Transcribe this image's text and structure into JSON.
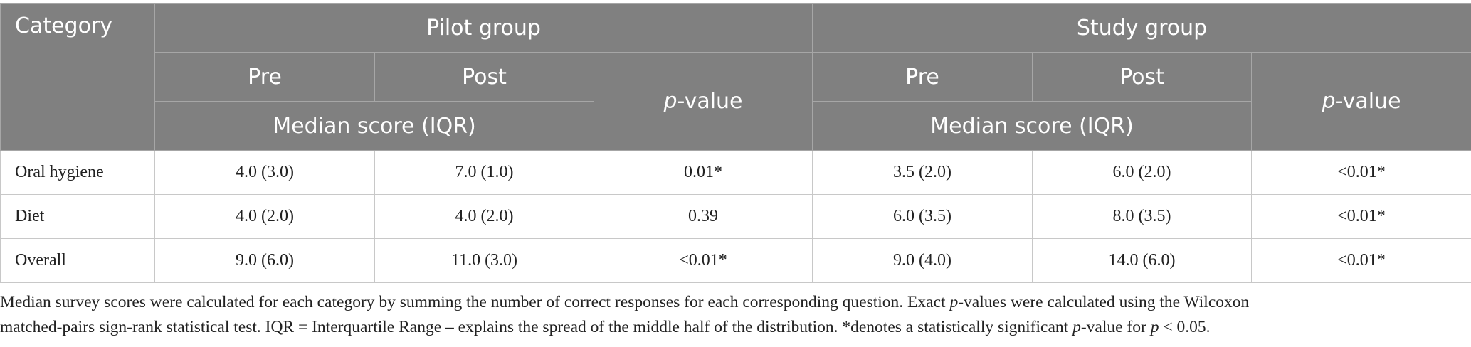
{
  "table": {
    "header": {
      "category": "Category",
      "groups": [
        {
          "name": "Pilot group",
          "pre": "Pre",
          "post": "Post",
          "p_value": {
            "italic": "p",
            "text": "-value"
          },
          "median": "Median score (IQR)"
        },
        {
          "name": "Study group",
          "pre": "Pre",
          "post": "Post",
          "p_value": {
            "italic": "p",
            "text": "-value"
          },
          "median": "Median score (IQR)"
        }
      ]
    },
    "rows": [
      [
        "Oral hygiene",
        "4.0 (3.0)",
        "7.0 (1.0)",
        "0.01*",
        "3.5 (2.0)",
        "6.0 (2.0)",
        "<0.01*"
      ],
      [
        "Diet",
        "4.0 (2.0)",
        "4.0 (2.0)",
        "0.39",
        "6.0 (3.5)",
        "8.0 (3.5)",
        "<0.01*"
      ],
      [
        "Overall",
        "9.0 (6.0)",
        "11.0 (3.0)",
        "<0.01*",
        "9.0 (4.0)",
        "14.0 (6.0)",
        "<0.01*"
      ]
    ]
  },
  "footnote": [
    [
      {
        "text": "Median survey scores were calculated for each category by summing the number of correct responses for each corresponding question. Exact "
      },
      {
        "text": "p",
        "italic": true
      },
      {
        "text": "-values were calculated using the Wilcoxon"
      }
    ],
    [
      {
        "text": "matched-pairs sign-rank statistical test. IQR = Interquartile Range – explains the spread of the middle half of the distribution. *denotes a statistically significant "
      },
      {
        "text": "p",
        "italic": true
      },
      {
        "text": "-value for "
      },
      {
        "text": "p",
        "italic": true
      },
      {
        "text": " < 0.05."
      }
    ]
  ]
}
